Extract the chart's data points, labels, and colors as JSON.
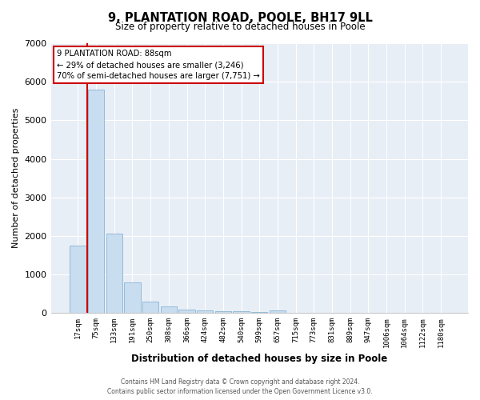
{
  "title": "9, PLANTATION ROAD, POOLE, BH17 9LL",
  "subtitle": "Size of property relative to detached houses in Poole",
  "xlabel": "Distribution of detached houses by size in Poole",
  "ylabel": "Number of detached properties",
  "categories": [
    "17sqm",
    "75sqm",
    "133sqm",
    "191sqm",
    "250sqm",
    "308sqm",
    "366sqm",
    "424sqm",
    "482sqm",
    "540sqm",
    "599sqm",
    "657sqm",
    "715sqm",
    "773sqm",
    "831sqm",
    "889sqm",
    "947sqm",
    "1006sqm",
    "1064sqm",
    "1122sqm",
    "1180sqm"
  ],
  "values": [
    1750,
    5800,
    2050,
    800,
    290,
    165,
    95,
    65,
    45,
    35,
    25,
    65,
    0,
    0,
    0,
    0,
    0,
    0,
    0,
    0,
    0
  ],
  "bar_color": "#c8ddef",
  "bar_edge_color": "#8ab4d4",
  "annotation_line1": "9 PLANTATION ROAD: 88sqm",
  "annotation_line2": "← 29% of detached houses are smaller (3,246)",
  "annotation_line3": "70% of semi-detached houses are larger (7,751) →",
  "annotation_box_facecolor": "#ffffff",
  "annotation_box_edgecolor": "#cc0000",
  "red_line_x": 0.5,
  "footer_line1": "Contains HM Land Registry data © Crown copyright and database right 2024.",
  "footer_line2": "Contains public sector information licensed under the Open Government Licence v3.0.",
  "background_color": "#ffffff",
  "plot_bg_color": "#e8eef6",
  "grid_color": "#ffffff",
  "ylim": [
    0,
    7000
  ],
  "yticks": [
    0,
    1000,
    2000,
    3000,
    4000,
    5000,
    6000,
    7000
  ]
}
